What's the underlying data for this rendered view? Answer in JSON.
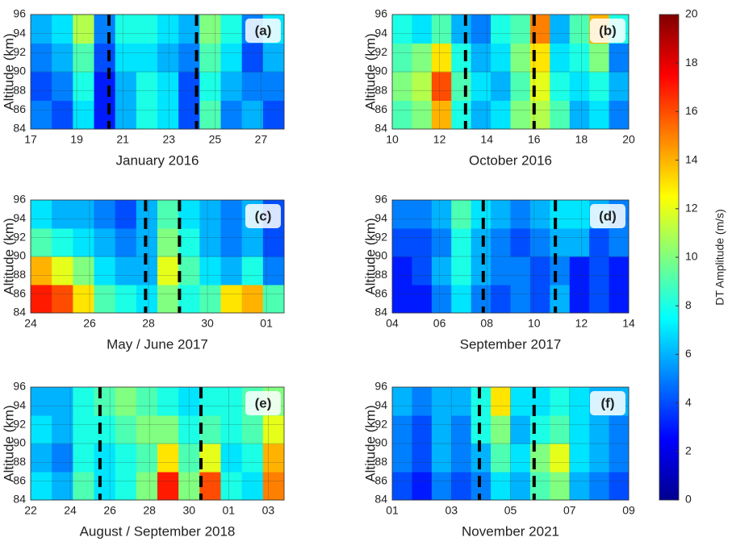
{
  "chart_data": [
    {
      "type": "heatmap",
      "label": "(a)",
      "xlabel": "January 2016",
      "ylabel": "Altitude (km)",
      "xlim": [
        17,
        28
      ],
      "xticks": [
        17,
        19,
        21,
        23,
        25,
        27
      ],
      "ylim": [
        84,
        96
      ],
      "yticks": [
        84,
        86,
        88,
        90,
        92,
        94,
        96
      ],
      "event_lines": [
        20.4,
        24.2
      ],
      "z": [
        [
          5,
          4,
          7,
          3,
          6,
          8,
          7,
          4,
          9,
          5,
          6,
          4
        ],
        [
          4,
          5,
          8,
          3,
          6,
          8,
          7,
          4,
          8,
          6,
          5,
          5
        ],
        [
          5,
          6,
          9,
          4,
          7,
          7,
          6,
          5,
          9,
          7,
          4,
          6
        ],
        [
          6,
          7,
          11,
          5,
          8,
          8,
          7,
          6,
          10,
          8,
          5,
          7
        ]
      ]
    },
    {
      "type": "heatmap",
      "label": "(b)",
      "xlabel": "October 2016",
      "ylabel": "Altitude (km)",
      "xlim": [
        10,
        20
      ],
      "xticks": [
        10,
        12,
        14,
        16,
        18,
        20
      ],
      "ylim": [
        84,
        96
      ],
      "yticks": [
        84,
        86,
        88,
        90,
        92,
        94,
        96
      ],
      "event_lines": [
        13.1,
        16.0
      ],
      "z": [
        [
          9,
          10,
          14,
          8,
          6,
          7,
          10,
          11,
          9,
          6,
          7,
          5
        ],
        [
          10,
          11,
          16,
          9,
          7,
          6,
          9,
          12,
          8,
          7,
          8,
          6
        ],
        [
          9,
          10,
          13,
          8,
          6,
          7,
          10,
          13,
          7,
          8,
          10,
          5
        ],
        [
          8,
          7,
          9,
          6,
          5,
          8,
          9,
          15,
          6,
          9,
          14,
          8
        ]
      ]
    },
    {
      "type": "heatmap",
      "label": "(c)",
      "xlabel": "May / June 2017",
      "ylabel": "Altitude (km)",
      "xlim": [
        24,
        32.6
      ],
      "xticks": [
        24,
        26,
        28,
        30,
        {
          "value": 32,
          "label": "01"
        }
      ],
      "ylim": [
        84,
        96
      ],
      "yticks": [
        84,
        86,
        88,
        90,
        92,
        94,
        96
      ],
      "event_lines": [
        27.9,
        29.05
      ],
      "z": [
        [
          17,
          16,
          13,
          9,
          8,
          7,
          10,
          8,
          9,
          13,
          14,
          9
        ],
        [
          14,
          12,
          10,
          7,
          6,
          6,
          12,
          9,
          7,
          6,
          8,
          5
        ],
        [
          9,
          8,
          7,
          6,
          5,
          6,
          10,
          8,
          6,
          5,
          6,
          4
        ],
        [
          7,
          6,
          6,
          5,
          4,
          6,
          9,
          7,
          6,
          5,
          6,
          4
        ]
      ]
    },
    {
      "type": "heatmap",
      "label": "(d)",
      "xlabel": "September 2017",
      "ylabel": "Altitude (km)",
      "xlim": [
        4,
        14
      ],
      "xticks": [
        {
          "value": 4,
          "label": "04"
        },
        {
          "value": 6,
          "label": "06"
        },
        {
          "value": 8,
          "label": "08"
        },
        10,
        12,
        14
      ],
      "ylim": [
        84,
        96
      ],
      "yticks": [
        84,
        86,
        88,
        90,
        92,
        94,
        96
      ],
      "event_lines": [
        7.85,
        10.9
      ],
      "z": [
        [
          3,
          3,
          5,
          7,
          5,
          4,
          5,
          4,
          6,
          3,
          4,
          3
        ],
        [
          3,
          4,
          6,
          8,
          6,
          5,
          5,
          4,
          5,
          3,
          4,
          3
        ],
        [
          4,
          4,
          5,
          8,
          6,
          5,
          4,
          5,
          6,
          6,
          4,
          5
        ],
        [
          5,
          5,
          6,
          9,
          7,
          6,
          5,
          6,
          7,
          7,
          6,
          5
        ]
      ]
    },
    {
      "type": "heatmap",
      "label": "(e)",
      "xlabel": "August / September 2018",
      "ylabel": "Altitude (km)",
      "xlim": [
        22,
        34.8
      ],
      "xticks": [
        22,
        24,
        26,
        28,
        30,
        {
          "value": 32,
          "label": "01"
        },
        {
          "value": 34,
          "label": "03"
        }
      ],
      "ylim": [
        84,
        96
      ],
      "yticks": [
        84,
        86,
        88,
        90,
        92,
        94,
        96
      ],
      "event_lines": [
        25.5,
        30.6
      ],
      "z": [
        [
          7,
          6,
          9,
          7,
          8,
          10,
          17,
          10,
          16,
          8,
          7,
          15
        ],
        [
          6,
          5,
          8,
          7,
          8,
          9,
          13,
          9,
          12,
          7,
          8,
          14
        ],
        [
          7,
          6,
          8,
          8,
          9,
          10,
          10,
          8,
          9,
          8,
          9,
          12
        ],
        [
          6,
          6,
          8,
          9,
          10,
          9,
          8,
          7,
          8,
          8,
          9,
          10
        ]
      ]
    },
    {
      "type": "heatmap",
      "label": "(f)",
      "xlabel": "November 2021",
      "ylabel": "Altitude (km)",
      "xlim": [
        1,
        9
      ],
      "xticks": [
        {
          "value": 1,
          "label": "01"
        },
        {
          "value": 3,
          "label": "03"
        },
        {
          "value": 5,
          "label": "05"
        },
        {
          "value": 7,
          "label": "07"
        },
        {
          "value": 9,
          "label": "09"
        }
      ],
      "ylim": [
        84,
        96
      ],
      "yticks": [
        84,
        86,
        88,
        90,
        92,
        94,
        96
      ],
      "event_lines": [
        3.95,
        5.8
      ],
      "z": [
        [
          4,
          3,
          5,
          4,
          5,
          7,
          6,
          9,
          10,
          6,
          5,
          4
        ],
        [
          5,
          4,
          6,
          5,
          6,
          9,
          7,
          10,
          12,
          7,
          6,
          5
        ],
        [
          5,
          4,
          6,
          5,
          8,
          10,
          6,
          8,
          9,
          7,
          6,
          5
        ],
        [
          6,
          5,
          6,
          6,
          8,
          13,
          7,
          7,
          8,
          7,
          6,
          6
        ]
      ]
    },
    {
      "type": "colorbar",
      "ylabel": "DT Amplitude (m/s)",
      "ylim": [
        0,
        20
      ],
      "yticks": [
        0,
        2,
        4,
        6,
        8,
        10,
        12,
        14,
        16,
        18,
        20
      ]
    }
  ]
}
